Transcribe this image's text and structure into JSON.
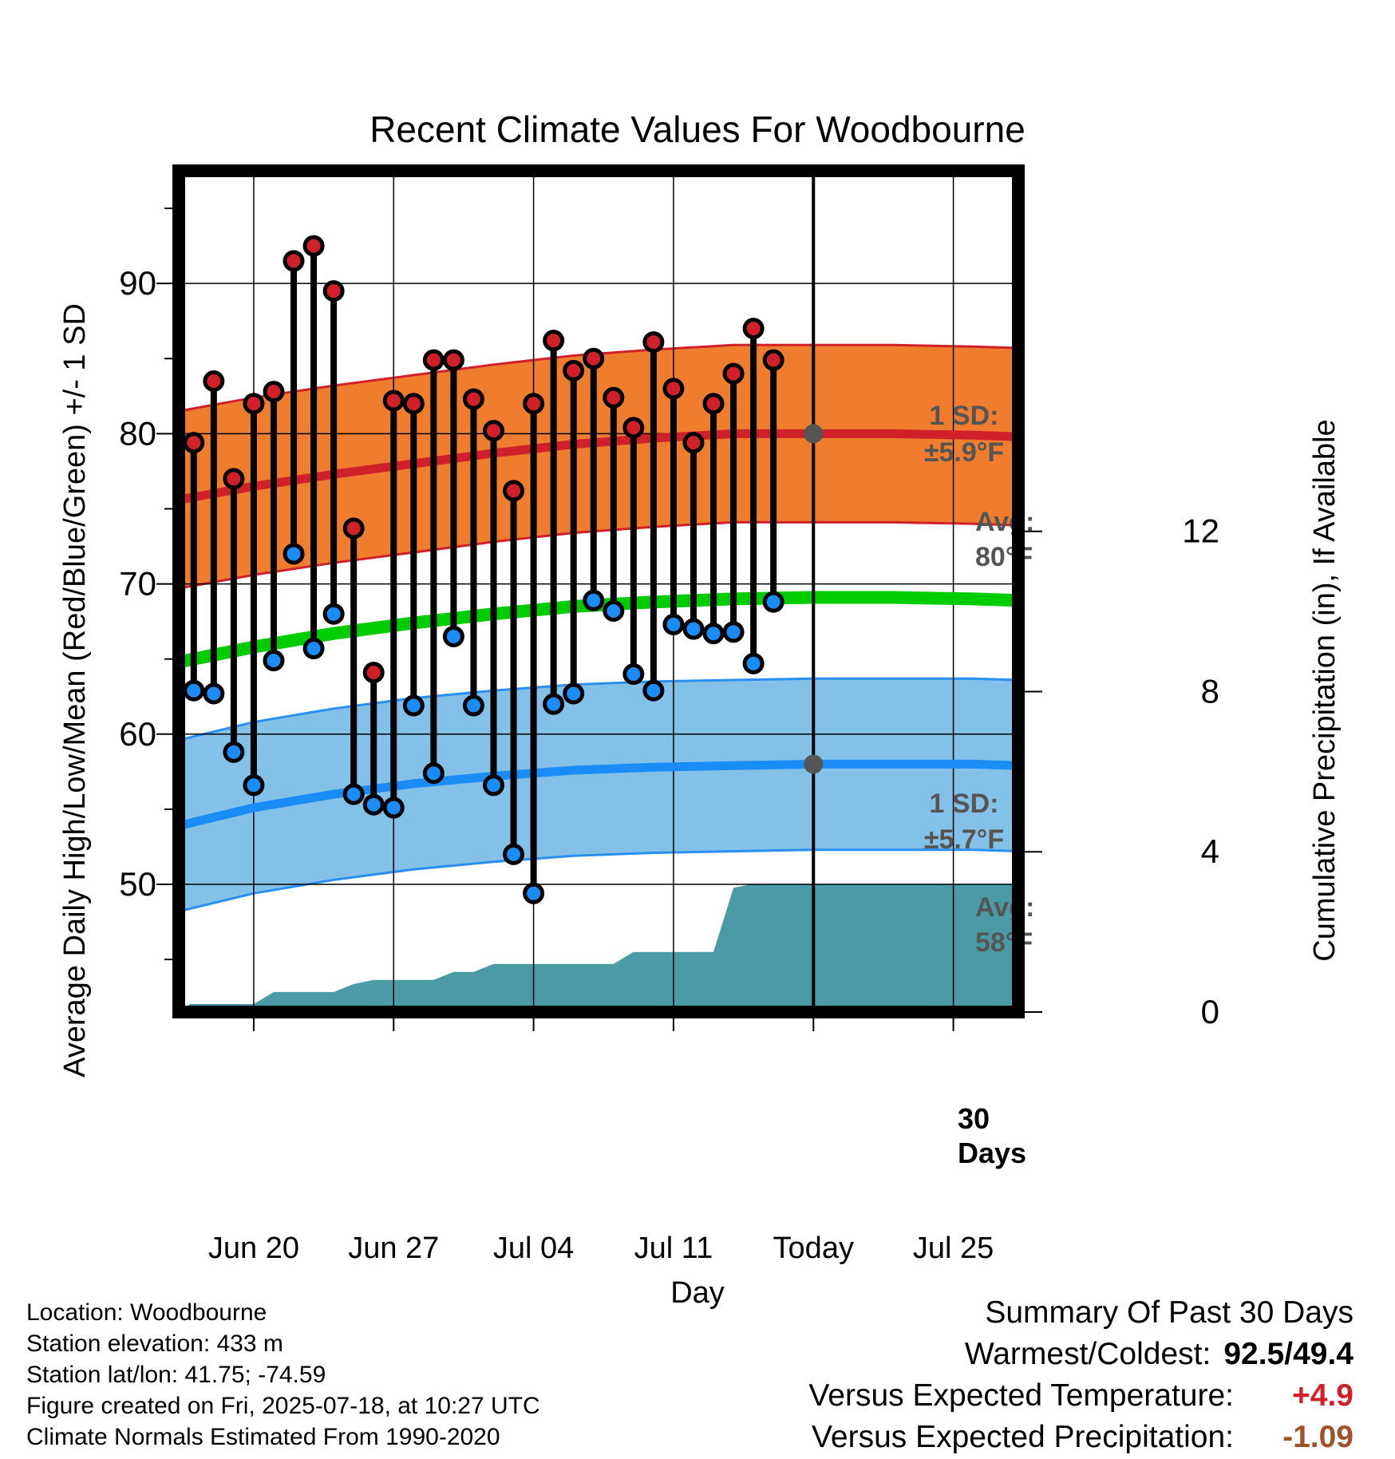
{
  "chart_data": {
    "type": "line",
    "title": "Recent Climate Values For Woodbourne",
    "xlabel": "Day",
    "ylabel": "Average Daily High/Low/Mean (Red/Blue/Green) +/- 1 SD",
    "y2label": "Cumulative Precipitation (in), If Available",
    "ylim": [
      41.5,
      97.5
    ],
    "y2lim": [
      0,
      21
    ],
    "xlim": [
      "2025-06-16.25",
      "2025-07-28.25"
    ],
    "x_ticks": [
      {
        "date": "2025-06-20",
        "label": "Jun 20"
      },
      {
        "date": "2025-06-27",
        "label": "Jun 27"
      },
      {
        "date": "2025-07-04",
        "label": "Jul 04"
      },
      {
        "date": "2025-07-11",
        "label": "Jul 11"
      },
      {
        "date": "2025-07-18",
        "label": "Today"
      },
      {
        "date": "2025-07-25",
        "label": "Jul 25"
      }
    ],
    "y_ticks": [
      50,
      60,
      70,
      80,
      90
    ],
    "y2_ticks": [
      0,
      4,
      8,
      12
    ],
    "grid": true,
    "today": "2025-07-18",
    "daily": {
      "dates": [
        "2025-06-17",
        "2025-06-18",
        "2025-06-19",
        "2025-06-20",
        "2025-06-21",
        "2025-06-22",
        "2025-06-23",
        "2025-06-24",
        "2025-06-25",
        "2025-06-26",
        "2025-06-27",
        "2025-06-28",
        "2025-06-29",
        "2025-06-30",
        "2025-07-01",
        "2025-07-02",
        "2025-07-03",
        "2025-07-04",
        "2025-07-05",
        "2025-07-06",
        "2025-07-07",
        "2025-07-08",
        "2025-07-09",
        "2025-07-10",
        "2025-07-11",
        "2025-07-12",
        "2025-07-13",
        "2025-07-14",
        "2025-07-15",
        "2025-07-16",
        "2025-07-17"
      ],
      "highs": [
        79.4,
        83.5,
        77.0,
        82.0,
        82.8,
        91.5,
        92.5,
        89.5,
        73.7,
        64.1,
        82.2,
        82.0,
        84.9,
        84.9,
        82.3,
        80.2,
        76.2,
        82.0,
        86.2,
        84.2,
        85.0,
        82.4,
        80.4,
        86.1,
        83.0,
        79.4,
        82.0,
        84.0,
        87.0,
        84.9,
        null
      ],
      "lows": [
        62.9,
        62.7,
        58.8,
        56.6,
        64.9,
        72.0,
        65.7,
        68.0,
        56.0,
        55.3,
        55.1,
        61.9,
        57.4,
        66.5,
        61.9,
        56.6,
        52.0,
        49.4,
        62.0,
        62.7,
        68.9,
        68.2,
        64.0,
        62.9,
        67.3,
        67.0,
        66.7,
        66.8,
        64.7,
        68.8,
        null
      ]
    },
    "normals": {
      "dates": [
        "2025-06-16.25",
        "2025-06-20",
        "2025-06-24",
        "2025-06-28",
        "2025-07-02",
        "2025-07-06",
        "2025-07-10",
        "2025-07-14",
        "2025-07-18",
        "2025-07-22",
        "2025-07-26",
        "2025-07-28.25"
      ],
      "high_avg": [
        75.6,
        76.5,
        77.3,
        78.0,
        78.7,
        79.3,
        79.7,
        80.0,
        80.0,
        80.0,
        79.9,
        79.8
      ],
      "low_avg": [
        53.9,
        55.1,
        56.0,
        56.7,
        57.2,
        57.6,
        57.8,
        57.9,
        58.0,
        58.0,
        58.0,
        57.9
      ],
      "mean_avg": [
        64.8,
        65.8,
        66.7,
        67.4,
        68.0,
        68.5,
        68.8,
        69.0,
        69.1,
        69.1,
        69.0,
        68.9
      ],
      "high_sd": 5.9,
      "low_sd": 5.7
    },
    "precip": {
      "dates": [
        "2025-06-16.25",
        "2025-06-16.8",
        "2025-06-17",
        "2025-06-19",
        "2025-06-20",
        "2025-06-21",
        "2025-06-22",
        "2025-06-23",
        "2025-06-24",
        "2025-06-25",
        "2025-06-26",
        "2025-06-27",
        "2025-06-29",
        "2025-06-30",
        "2025-07-01",
        "2025-07-02",
        "2025-07-03",
        "2025-07-04",
        "2025-07-07",
        "2025-07-08",
        "2025-07-09",
        "2025-07-10",
        "2025-07-12",
        "2025-07-13",
        "2025-07-14",
        "2025-07-15",
        "2025-07-16",
        "2025-07-28.25"
      ],
      "values": [
        0.0,
        0.2,
        0.2,
        0.2,
        0.2,
        0.5,
        0.5,
        0.5,
        0.5,
        0.7,
        0.8,
        0.8,
        0.8,
        1.0,
        1.0,
        1.2,
        1.2,
        1.2,
        1.2,
        1.2,
        1.5,
        1.5,
        1.5,
        1.5,
        3.1,
        3.2,
        3.2,
        3.2
      ]
    },
    "annotations": {
      "high_sd_label": "1 SD:",
      "high_sd_value": "±5.9°F",
      "high_avg_label": "Avg:",
      "high_avg_value": "80°F",
      "low_sd_label": "1 SD:",
      "low_sd_value": "±5.7°F",
      "low_avg_label": "Avg:",
      "low_avg_value": "58°F",
      "days_label_1": "30",
      "days_label_2": "Days"
    },
    "colors": {
      "high_band": "#f07c2e",
      "high_avg": "#d0202a",
      "low_band": "#83c1e8",
      "low_avg": "#1a8cf5",
      "low_band_edge": "#2b8ff0",
      "mean": "#00cc00",
      "precip": "#4a9ba5",
      "high_dot": "#d0202a",
      "low_dot": "#1a8cf5",
      "annotation": "#555555",
      "avg_marker": "#555555"
    }
  },
  "footer": {
    "location": "Location: Woodbourne",
    "elevation": "Station elevation: 433 m",
    "latlon": "Station lat/lon: 41.75; -74.59",
    "created": "Figure created on Fri, 2025-07-18, at 10:27 UTC",
    "normals": "Climate Normals Estimated From 1990-2020"
  },
  "summary": {
    "title": "Summary Of Past 30 Days",
    "warm_cold_label": "Warmest/Coldest:",
    "warm_cold_value": "92.5/49.4",
    "temp_label": "Versus Expected Temperature:",
    "temp_value": "+4.9",
    "temp_color": "#d0202a",
    "precip_label": "Versus Expected Precipitation:",
    "precip_value": "-1.09",
    "precip_color": "#a0522d"
  }
}
